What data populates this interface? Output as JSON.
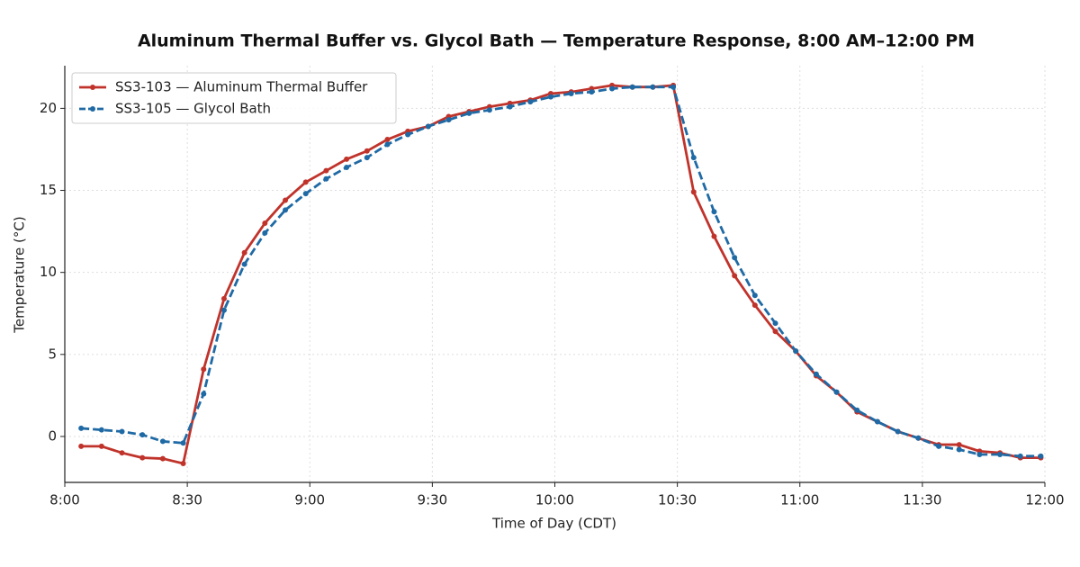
{
  "chart_data": {
    "type": "line",
    "title": "Aluminum Thermal Buffer vs. Glycol Bath — Temperature Response, 8:00 AM–12:00 PM",
    "x_label": "Time of Day (CDT)",
    "y_label": "Temperature (°C)",
    "x": [
      484,
      489,
      494,
      499,
      504,
      509,
      514,
      519,
      524,
      529,
      534,
      539,
      544,
      549,
      554,
      559,
      564,
      569,
      574,
      579,
      584,
      589,
      594,
      599,
      604,
      609,
      614,
      619,
      624,
      629,
      634,
      639,
      644,
      649,
      654,
      659,
      664,
      669,
      674,
      679,
      684,
      689,
      694,
      699,
      704,
      709,
      714,
      719
    ],
    "series": [
      {
        "name": "SS3-103 — Aluminum Thermal Buffer",
        "color": "#c0332b",
        "dashed": false,
        "values": [
          -0.6,
          -0.6,
          -1.0,
          -1.3,
          -1.35,
          -1.65,
          4.1,
          8.4,
          11.2,
          13.0,
          14.4,
          15.5,
          16.2,
          16.9,
          17.4,
          18.1,
          18.6,
          18.9,
          19.5,
          19.8,
          20.1,
          20.3,
          20.5,
          20.9,
          21.0,
          21.2,
          21.4,
          21.3,
          21.3,
          21.4,
          14.9,
          12.2,
          9.8,
          8.0,
          6.4,
          5.2,
          3.7,
          2.7,
          1.5,
          0.9,
          0.3,
          -0.1,
          -0.5,
          -0.5,
          -0.9,
          -1.0,
          -1.3,
          -1.3
        ]
      },
      {
        "name": "SS3-105 — Glycol Bath",
        "color": "#1f6aa5",
        "dashed": true,
        "values": [
          0.5,
          0.4,
          0.3,
          0.1,
          -0.3,
          -0.4,
          2.6,
          7.7,
          10.5,
          12.4,
          13.8,
          14.8,
          15.7,
          16.4,
          17.0,
          17.8,
          18.4,
          18.9,
          19.3,
          19.7,
          19.9,
          20.1,
          20.4,
          20.7,
          20.9,
          21.0,
          21.2,
          21.3,
          21.3,
          21.3,
          17.0,
          13.7,
          10.9,
          8.6,
          6.9,
          5.2,
          3.8,
          2.7,
          1.6,
          0.9,
          0.3,
          -0.1,
          -0.6,
          -0.8,
          -1.1,
          -1.1,
          -1.2,
          -1.2
        ]
      }
    ],
    "xlim": [
      480,
      720
    ],
    "xticks": [
      {
        "value": 480,
        "label": "8:00"
      },
      {
        "value": 510,
        "label": "8:30"
      },
      {
        "value": 540,
        "label": "9:00"
      },
      {
        "value": 570,
        "label": "9:30"
      },
      {
        "value": 600,
        "label": "10:00"
      },
      {
        "value": 630,
        "label": "10:30"
      },
      {
        "value": 660,
        "label": "11:00"
      },
      {
        "value": 690,
        "label": "11:30"
      },
      {
        "value": 720,
        "label": "12:00"
      }
    ],
    "ylim": [
      -2.8,
      22.6
    ],
    "yticks": [
      0,
      5,
      10,
      15,
      20
    ],
    "grid": true,
    "legend": "upper-left"
  }
}
